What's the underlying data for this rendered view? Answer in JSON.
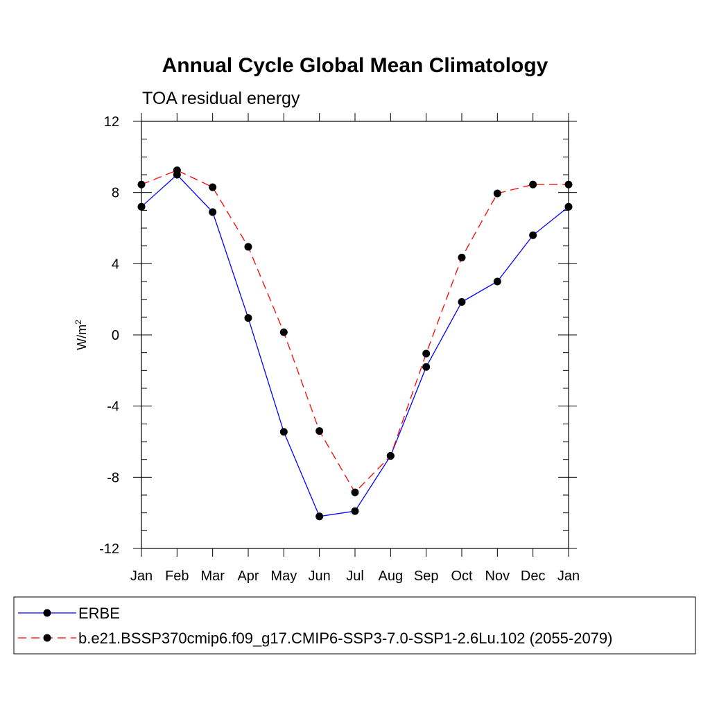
{
  "chart_data": {
    "type": "line",
    "title": "Annual Cycle Global Mean Climatology",
    "subtitle": "TOA residual energy",
    "ylabel_base": "W/m",
    "ylabel_sup": "2",
    "xlabel": "",
    "categories": [
      "Jan",
      "Feb",
      "Mar",
      "Apr",
      "May",
      "Jun",
      "Jul",
      "Aug",
      "Sep",
      "Oct",
      "Nov",
      "Dec",
      "Jan"
    ],
    "ylim": [
      -12,
      12
    ],
    "yticks": [
      -12,
      -8,
      -4,
      0,
      4,
      8,
      12
    ],
    "y_minor_step": 1,
    "grid": false,
    "legend_position": "bottom",
    "series": [
      {
        "name": "ERBE",
        "color": "#0000ff",
        "line_style": "solid",
        "marker": "filled-circle",
        "values": [
          7.2,
          9.0,
          6.9,
          0.95,
          -5.45,
          -10.2,
          -9.9,
          -6.8,
          -1.8,
          1.85,
          3.0,
          5.6,
          7.2
        ]
      },
      {
        "name": "b.e21.BSSP370cmip6.f09_g17.CMIP6-SSP3-7.0-SSP1-2.6Lu.102 (2055-2079)",
        "color": "#ff0000",
        "line_style": "dashed",
        "marker": "filled-circle",
        "values": [
          8.45,
          9.25,
          8.3,
          4.95,
          0.15,
          -5.4,
          -8.85,
          -6.8,
          -1.05,
          4.35,
          7.95,
          8.45,
          8.45
        ]
      }
    ]
  }
}
